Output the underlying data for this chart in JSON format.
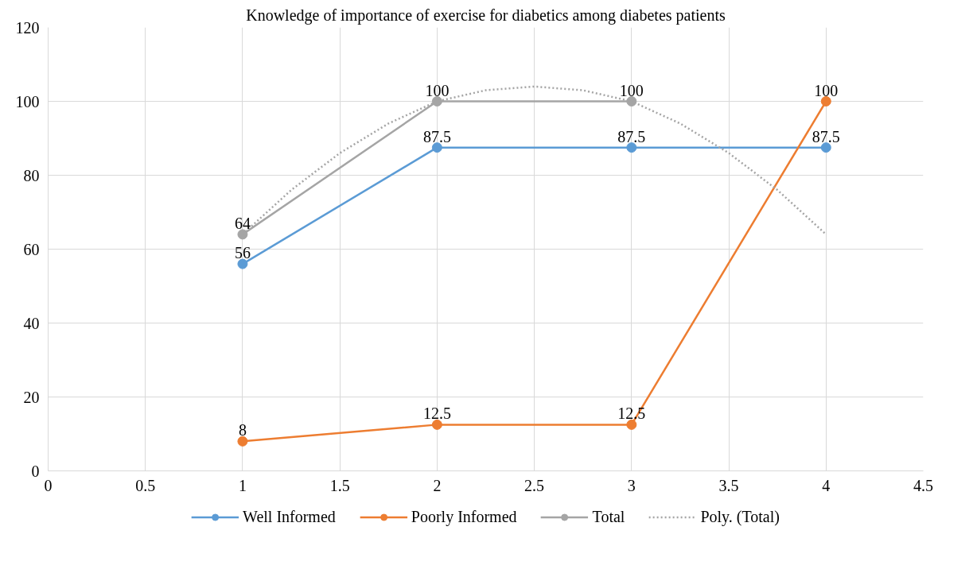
{
  "chart_data": {
    "type": "line",
    "title": "Knowledge of importance of exercise for diabetics among diabetes patients",
    "x": [
      1,
      2,
      3,
      4
    ],
    "series": [
      {
        "name": "Well Informed",
        "color": "#5b9bd5",
        "values": [
          56,
          87.5,
          87.5,
          87.5
        ],
        "value_labels": [
          "56",
          "87.5",
          "87.5",
          "87.5"
        ]
      },
      {
        "name": "Poorly Informed",
        "color": "#ed7d31",
        "values": [
          8,
          12.5,
          12.5,
          100
        ],
        "value_labels": [
          "8",
          "12.5",
          "12.5",
          "100"
        ]
      },
      {
        "name": "Total",
        "color": "#a5a5a5",
        "values": [
          64,
          100,
          100,
          null
        ],
        "value_labels": [
          "64",
          "100",
          "100",
          null
        ]
      },
      {
        "name": "Poly. (Total)",
        "color": "#a5a5a5",
        "marker": "none",
        "line_style": "dotted",
        "x": [
          1,
          1.25,
          1.5,
          1.75,
          2,
          2.25,
          2.5,
          2.75,
          3,
          3.25,
          3.5,
          3.75,
          4
        ],
        "values": [
          64,
          76,
          86,
          94,
          100,
          103,
          104,
          103,
          100,
          94,
          86,
          76,
          64
        ]
      }
    ],
    "xlim": [
      0,
      4.5
    ],
    "xticks": [
      0,
      0.5,
      1,
      1.5,
      2,
      2.5,
      3,
      3.5,
      4,
      4.5
    ],
    "ylim": [
      0,
      120
    ],
    "yticks": [
      0,
      20,
      40,
      60,
      80,
      100,
      120
    ],
    "grid": true,
    "legend": "bottom",
    "marker": "circle",
    "line_style": "solid"
  }
}
